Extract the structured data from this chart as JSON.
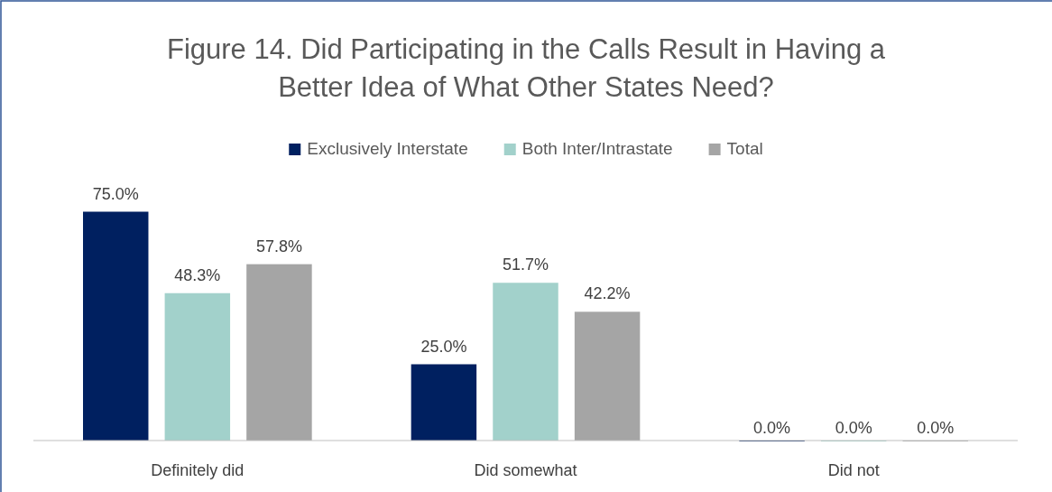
{
  "chart_data": {
    "type": "bar",
    "title": "Figure 14. Did Participating in the Calls Result in Having a Better Idea of What Other States Need?",
    "categories": [
      "Definitely did",
      "Did somewhat",
      "Did not"
    ],
    "series": [
      {
        "name": "Exclusively Interstate",
        "color": "#002060",
        "values": [
          75.0,
          25.0,
          0.0
        ],
        "value_labels": [
          "75.0%",
          "25.0%",
          "0.0%"
        ]
      },
      {
        "name": "Both Inter/Intrastate",
        "color": "#a2d1cb",
        "values": [
          48.3,
          51.7,
          0.0
        ],
        "value_labels": [
          "48.3%",
          "51.7%",
          "0.0%"
        ]
      },
      {
        "name": "Total",
        "color": "#a5a5a5",
        "values": [
          57.8,
          42.2,
          0.0
        ],
        "value_labels": [
          "57.8%",
          "42.2%",
          "0.0%"
        ]
      }
    ],
    "legend": "top"
  }
}
